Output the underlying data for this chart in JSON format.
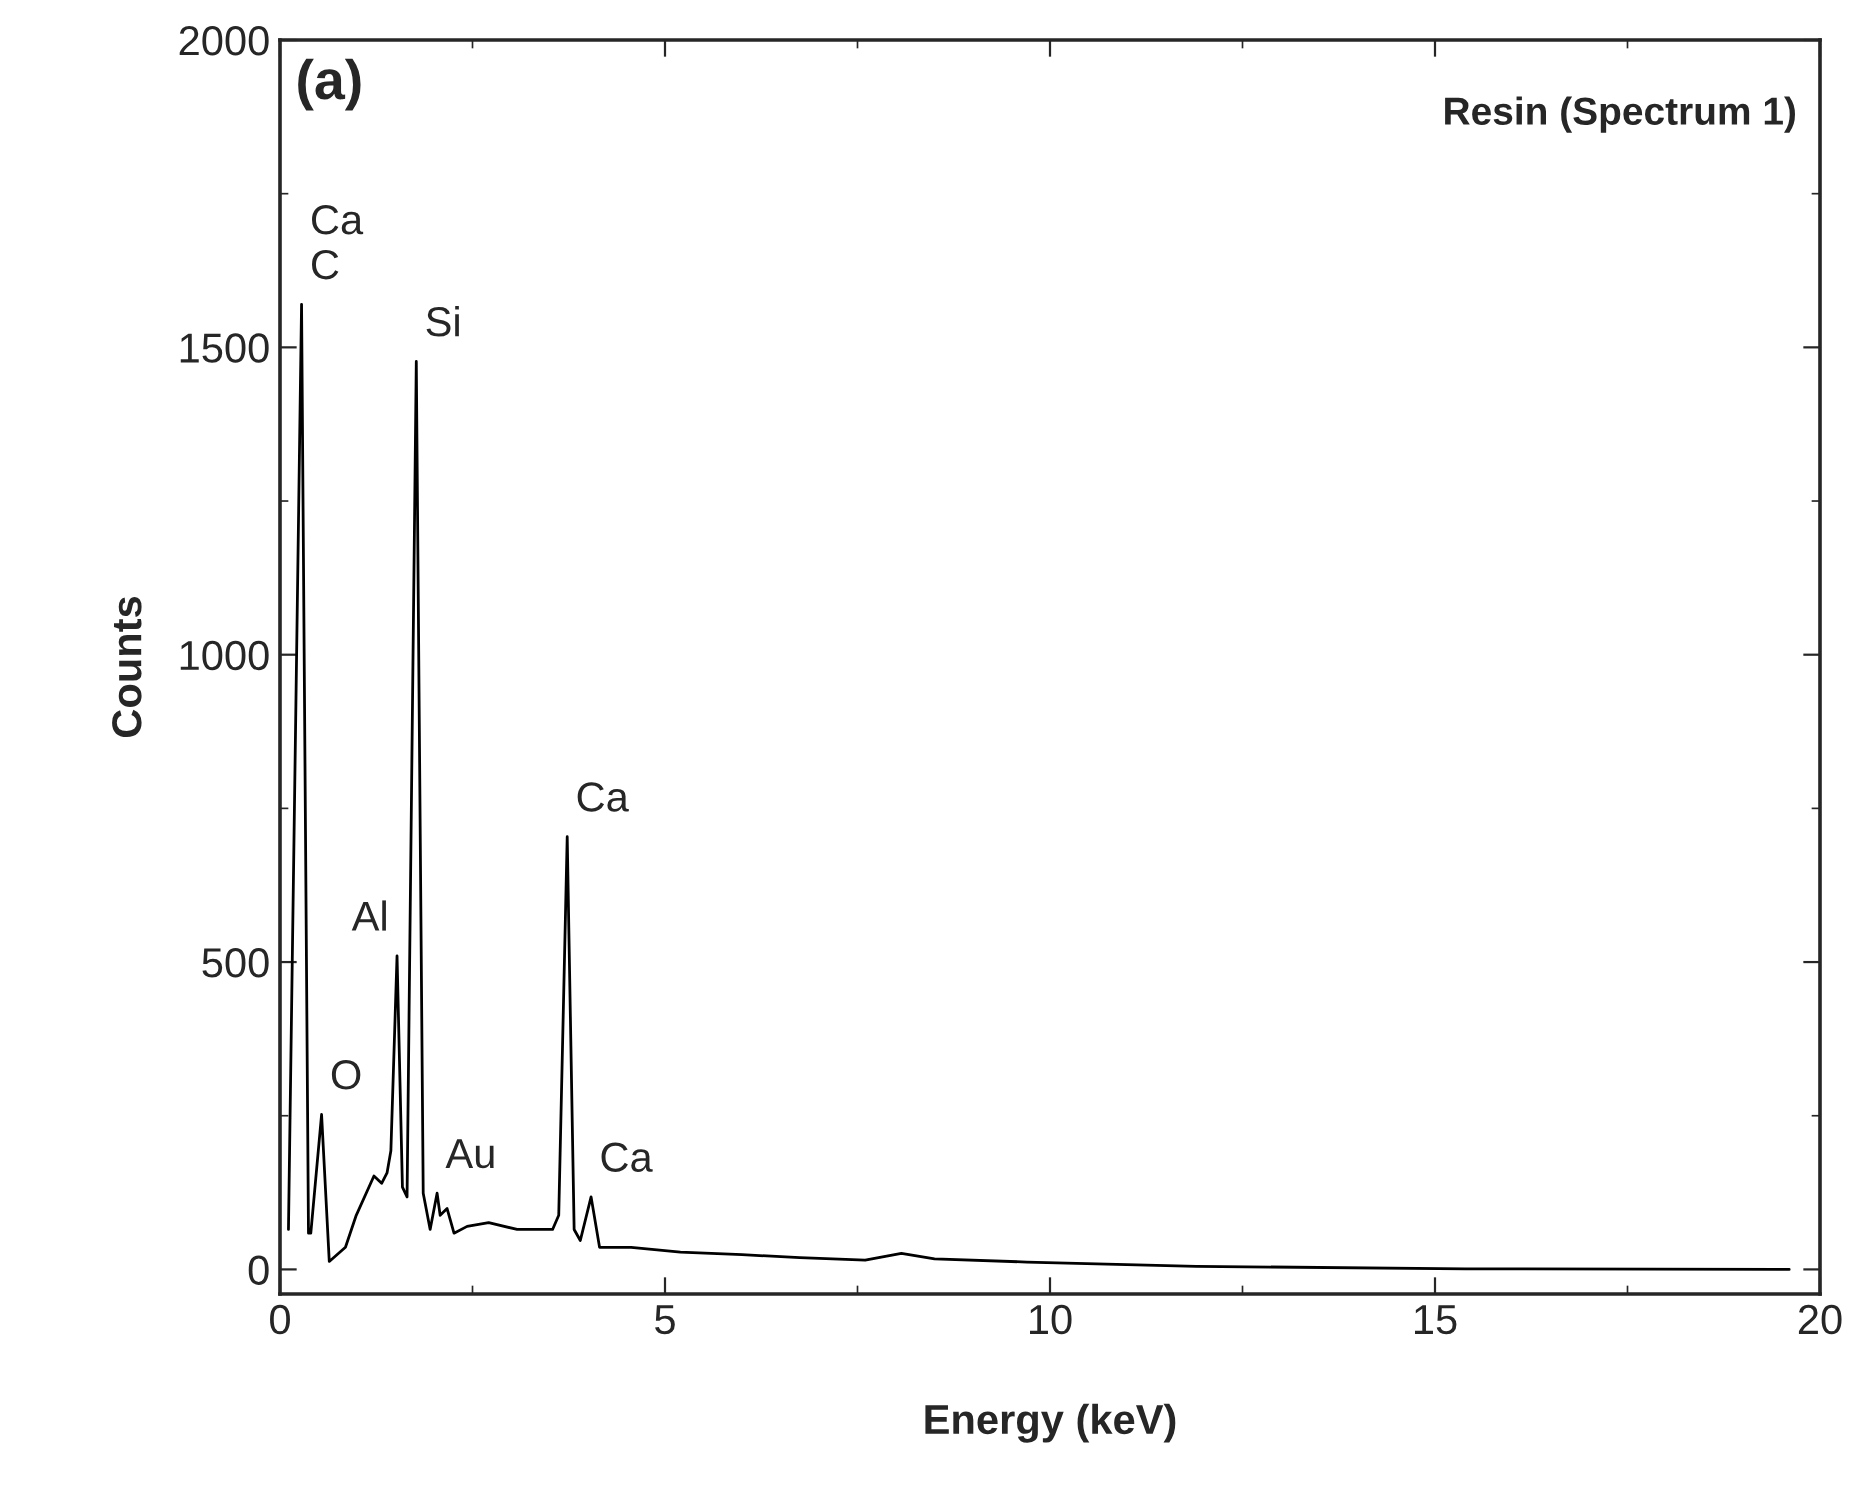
{
  "chart_data": {
    "type": "line",
    "xlabel": "Energy (keV)",
    "ylabel": "Counts",
    "x": [
      0.11,
      0.28,
      0.37,
      0.4,
      0.54,
      0.64,
      0.85,
      0.99,
      1.22,
      1.32,
      1.39,
      1.44,
      1.52,
      1.59,
      1.65,
      1.77,
      1.86,
      1.95,
      2.04,
      2.08,
      2.17,
      2.26,
      2.43,
      2.71,
      3.08,
      3.54,
      3.62,
      3.73,
      3.82,
      3.9,
      4.04,
      4.15,
      4.56,
      5.2,
      6.0,
      6.75,
      7.6,
      8.07,
      8.5,
      9.7,
      11.9,
      15.4,
      19.6
    ],
    "series": [
      {
        "color": "#000000",
        "values": [
          65,
          1570,
          59,
          59,
          252,
          13,
          36,
          88,
          152,
          140,
          157,
          193,
          510,
          134,
          118,
          1477,
          124,
          65,
          124,
          88,
          99,
          59,
          70,
          76,
          65,
          65,
          88,
          704,
          65,
          47,
          118,
          36,
          36,
          28,
          24,
          19,
          15,
          26,
          17,
          12,
          5,
          1,
          0
        ]
      }
    ],
    "xlim": [
      0,
      20
    ],
    "ylim": [
      -40,
      2000
    ],
    "xticks": [
      0,
      5,
      10,
      15,
      20
    ],
    "yticks": [
      0,
      500,
      1000,
      1500,
      2000
    ],
    "grid": false,
    "legend": false,
    "marker": "none",
    "line_style": "solid",
    "annotations": [
      "(a)",
      "Resin (Spectrum 1)",
      {
        "text": "Ca\nC",
        "x": 0.28,
        "y": 1570
      },
      {
        "text": "O",
        "x": 0.54,
        "y": 252
      },
      {
        "text": "Al",
        "x": 1.52,
        "y": 510
      },
      {
        "text": "Si",
        "x": 1.77,
        "y": 1477
      },
      {
        "text": "Au",
        "x": 2.04,
        "y": 124
      },
      {
        "text": "Ca",
        "x": 3.73,
        "y": 704
      },
      {
        "text": "Ca",
        "x": 4.04,
        "y": 118
      }
    ]
  }
}
